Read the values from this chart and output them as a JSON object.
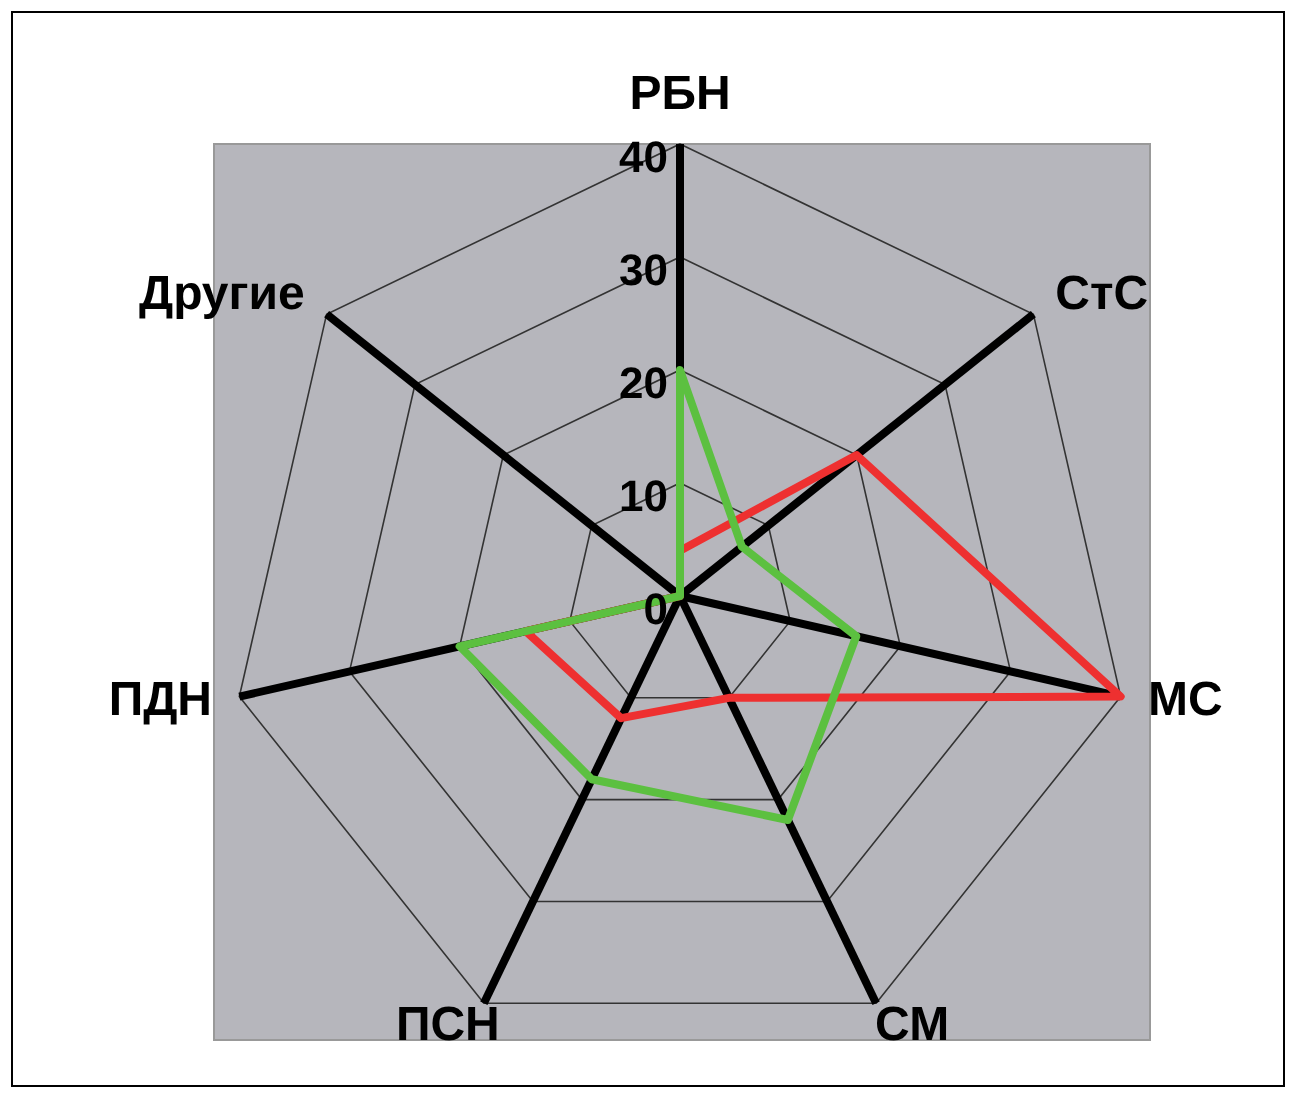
{
  "chart_data": {
    "type": "radar",
    "categories": [
      "РБН",
      "СтС",
      "МС",
      "СМ",
      "ПСН",
      "ПДН",
      "Другие"
    ],
    "ylim": [
      0,
      40
    ],
    "yticks": [
      0,
      10,
      20,
      30,
      40
    ],
    "series": [
      {
        "color": "#ee3030",
        "values": [
          4,
          20,
          40,
          10,
          12,
          14,
          0
        ]
      },
      {
        "color": "#5cc040",
        "values": [
          20,
          7,
          16,
          22,
          18,
          20,
          0
        ]
      }
    ]
  }
}
